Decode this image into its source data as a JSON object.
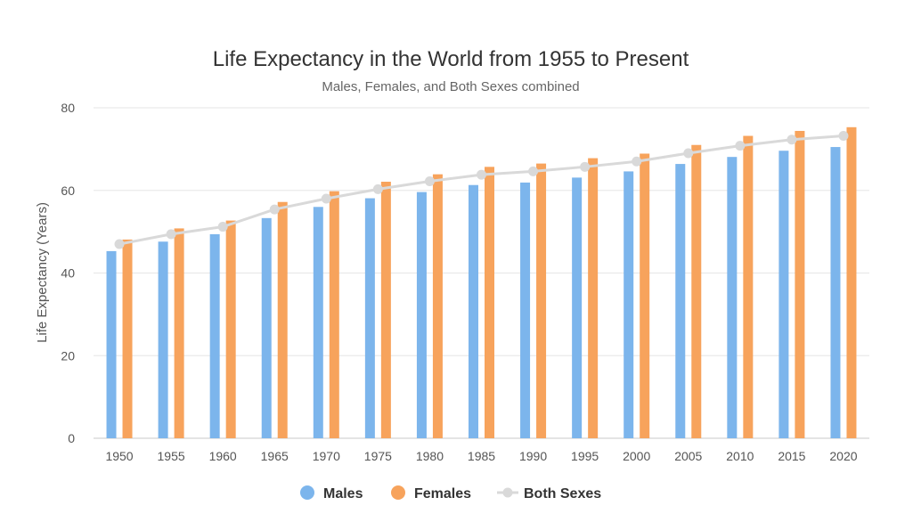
{
  "chart_data": {
    "type": "bar",
    "title": "Life Expectancy in the World from 1955 to Present",
    "subtitle": "Males, Females, and Both Sexes combined",
    "ylabel": "Life Expectancy (Years)",
    "xlabel": "",
    "ylim": [
      0,
      80
    ],
    "yticks": [
      "0",
      "20",
      "40",
      "60",
      "80"
    ],
    "grid": true,
    "legend_position": "bottom",
    "categories": [
      "1950",
      "1955",
      "1960",
      "1965",
      "1970",
      "1975",
      "1980",
      "1985",
      "1990",
      "1995",
      "2000",
      "2005",
      "2010",
      "2015",
      "2020"
    ],
    "series": [
      {
        "name": "Males",
        "type": "bar",
        "color": "#7cb5ec",
        "values": [
          45.3,
          47.6,
          49.4,
          53.3,
          56.0,
          58.1,
          59.6,
          61.3,
          61.9,
          63.1,
          64.6,
          66.4,
          68.1,
          69.6,
          70.5
        ]
      },
      {
        "name": "Females",
        "type": "bar",
        "color": "#f7a35c",
        "values": [
          48.1,
          50.8,
          52.7,
          57.2,
          59.8,
          62.1,
          63.9,
          65.7,
          66.5,
          67.8,
          68.9,
          71.0,
          73.2,
          74.4,
          75.3
        ]
      },
      {
        "name": "Both Sexes",
        "type": "line",
        "color": "#d9d9d9",
        "values": [
          47.0,
          49.4,
          51.2,
          55.4,
          58.0,
          60.3,
          62.2,
          63.8,
          64.6,
          65.7,
          67.0,
          69.0,
          70.8,
          72.3,
          73.2
        ]
      }
    ]
  }
}
